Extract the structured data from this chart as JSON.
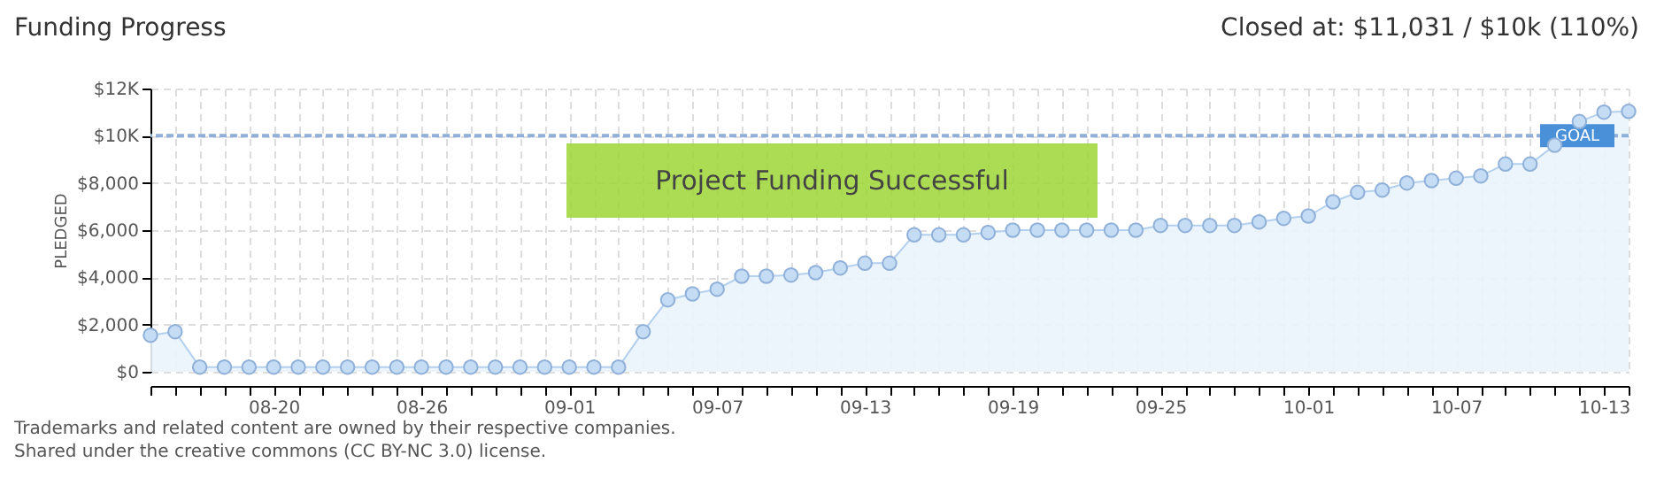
{
  "chart_data": {
    "type": "area",
    "title": "Funding Progress",
    "subtitle": "Closed at: $11,031 / $10k (110%)",
    "ylabel": "PLEDGED",
    "categories": [
      null,
      null,
      null,
      null,
      null,
      "08-20",
      null,
      null,
      null,
      null,
      null,
      "08-26",
      null,
      null,
      null,
      null,
      null,
      "09-01",
      null,
      null,
      null,
      null,
      null,
      "09-07",
      null,
      null,
      null,
      null,
      null,
      "09-13",
      null,
      null,
      null,
      null,
      null,
      "09-19",
      null,
      null,
      null,
      null,
      null,
      "09-25",
      null,
      null,
      null,
      null,
      null,
      "10-01",
      null,
      null,
      null,
      null,
      null,
      "10-07",
      null,
      null,
      null,
      null,
      null,
      "10-13",
      null
    ],
    "series": [
      {
        "color": "#c5dcf5",
        "values": [
          1550,
          1700,
          200,
          200,
          200,
          200,
          200,
          200,
          200,
          200,
          200,
          200,
          200,
          200,
          200,
          200,
          200,
          200,
          200,
          200,
          1700,
          3050,
          3300,
          3500,
          4050,
          4050,
          4100,
          4200,
          4400,
          4600,
          4600,
          5800,
          5800,
          5800,
          5900,
          6000,
          6000,
          6000,
          6000,
          6000,
          6000,
          6200,
          6200,
          6200,
          6200,
          6350,
          6500,
          6600,
          7200,
          7600,
          7700,
          8000,
          8100,
          8200,
          8300,
          8800,
          8800,
          9600,
          10600,
          11000,
          11031
        ]
      }
    ],
    "ylim": [
      0,
      12000
    ],
    "yticks": [
      {
        "value": 0,
        "label": "$0"
      },
      {
        "value": 2000,
        "label": "$2,000"
      },
      {
        "value": 4000,
        "label": "$4,000"
      },
      {
        "value": 6000,
        "label": "$6,000"
      },
      {
        "value": 8000,
        "label": "$8,000"
      },
      {
        "value": 10000,
        "label": "$10K"
      },
      {
        "value": 12000,
        "label": "$12K"
      }
    ],
    "grid": true,
    "marker": "circle",
    "ref_lines": [
      {
        "axis": "y",
        "value": 10000,
        "label": "GOAL",
        "color": "#8fb0d8",
        "line_style": "dashed"
      }
    ],
    "annotations": [
      "Project Funding Successful",
      "Trademarks and related content are owned by their respective companies.",
      "Shared under the creative commons (CC BY-NC 3.0) license."
    ]
  }
}
